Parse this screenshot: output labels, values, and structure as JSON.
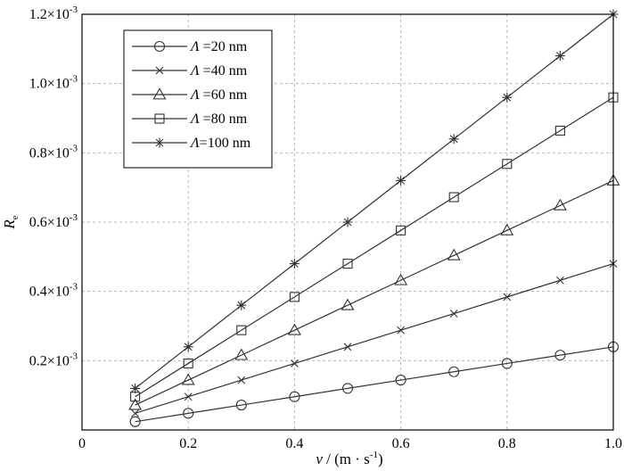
{
  "chart_data": {
    "type": "line",
    "xlabel_var": "v",
    "xlabel_unit": " / (m · s",
    "xlabel_unit_exp": "-1",
    "xlabel_close": ")",
    "ylabel_var": "R",
    "ylabel_sub": "e",
    "xlim": [
      0,
      1.0
    ],
    "ylim": [
      0,
      0.0012
    ],
    "x_ticks": [
      0,
      0.2,
      0.4,
      0.6,
      0.8,
      1.0
    ],
    "x_tick_labels": [
      "0",
      "0.2",
      "0.4",
      "0.6",
      "0.8",
      "1.0"
    ],
    "y_ticks": [
      0.0002,
      0.0004,
      0.0006,
      0.0008,
      0.001,
      0.0012
    ],
    "y_tick_mantissas": [
      "0.2×10",
      "0.4×10",
      "0.6×10",
      "0.8×10",
      "1.0×10",
      "1.2×10"
    ],
    "y_tick_exponent": "-3",
    "grid": true,
    "legend_position": "top-left",
    "x": [
      0.1,
      0.2,
      0.3,
      0.4,
      0.5,
      0.6,
      0.7,
      0.8,
      0.9,
      1.0
    ],
    "series": [
      {
        "symbol": "Λ",
        "label": " =20 nm",
        "marker": "circle",
        "values": [
          2.4e-05,
          4.8e-05,
          7.2e-05,
          9.6e-05,
          0.00012,
          0.000144,
          0.000168,
          0.000192,
          0.000216,
          0.00024
        ]
      },
      {
        "symbol": "Λ",
        "label": " =40 nm",
        "marker": "x",
        "values": [
          4.8e-05,
          9.6e-05,
          0.000144,
          0.000192,
          0.00024,
          0.000288,
          0.000336,
          0.000384,
          0.000432,
          0.00048
        ]
      },
      {
        "symbol": "Λ",
        "label": " =60 nm",
        "marker": "triangle",
        "values": [
          7.2e-05,
          0.000144,
          0.000216,
          0.000288,
          0.00036,
          0.000432,
          0.000504,
          0.000576,
          0.000648,
          0.00072
        ]
      },
      {
        "symbol": "Λ",
        "label": " =80 nm",
        "marker": "square",
        "values": [
          9.6e-05,
          0.000192,
          0.000288,
          0.000384,
          0.00048,
          0.000576,
          0.000672,
          0.000768,
          0.000864,
          0.00096
        ]
      },
      {
        "symbol": "Λ",
        "label": "=100 nm",
        "marker": "star",
        "values": [
          0.00012,
          0.00024,
          0.00036,
          0.00048,
          0.0006,
          0.00072,
          0.00084,
          0.00096,
          0.00108,
          0.0012
        ]
      }
    ]
  }
}
